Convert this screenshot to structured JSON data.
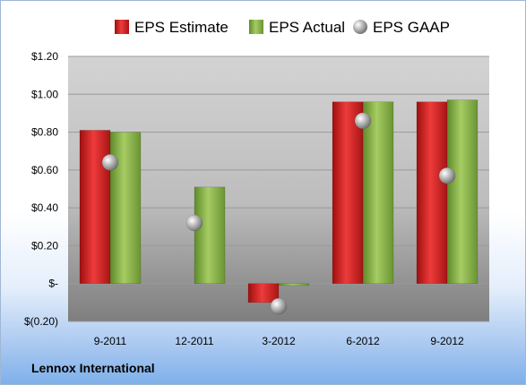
{
  "chart_data": {
    "type": "bar",
    "categories": [
      "9-2011",
      "12-2011",
      "3-2012",
      "6-2012",
      "9-2012"
    ],
    "series": [
      {
        "name": "EPS Estimate",
        "values": [
          0.81,
          null,
          -0.1,
          0.96,
          0.96
        ],
        "color": "#d42a2a"
      },
      {
        "name": "EPS Actual",
        "values": [
          0.8,
          0.51,
          -0.01,
          0.96,
          0.97
        ],
        "color": "#8cb34a"
      },
      {
        "name": "EPS GAAP",
        "values": [
          0.64,
          0.32,
          -0.12,
          0.86,
          0.57
        ],
        "color": "#a9a9a9",
        "marker": "sphere"
      }
    ],
    "yticks": [
      "$(0.20)",
      "$-",
      "$0.20",
      "$0.40",
      "$0.60",
      "$0.80",
      "$1.00",
      "$1.20"
    ],
    "ylim": [
      -0.2,
      1.2
    ],
    "grid": true,
    "legend_position": "top"
  },
  "footer": {
    "company": "Lennox International"
  }
}
